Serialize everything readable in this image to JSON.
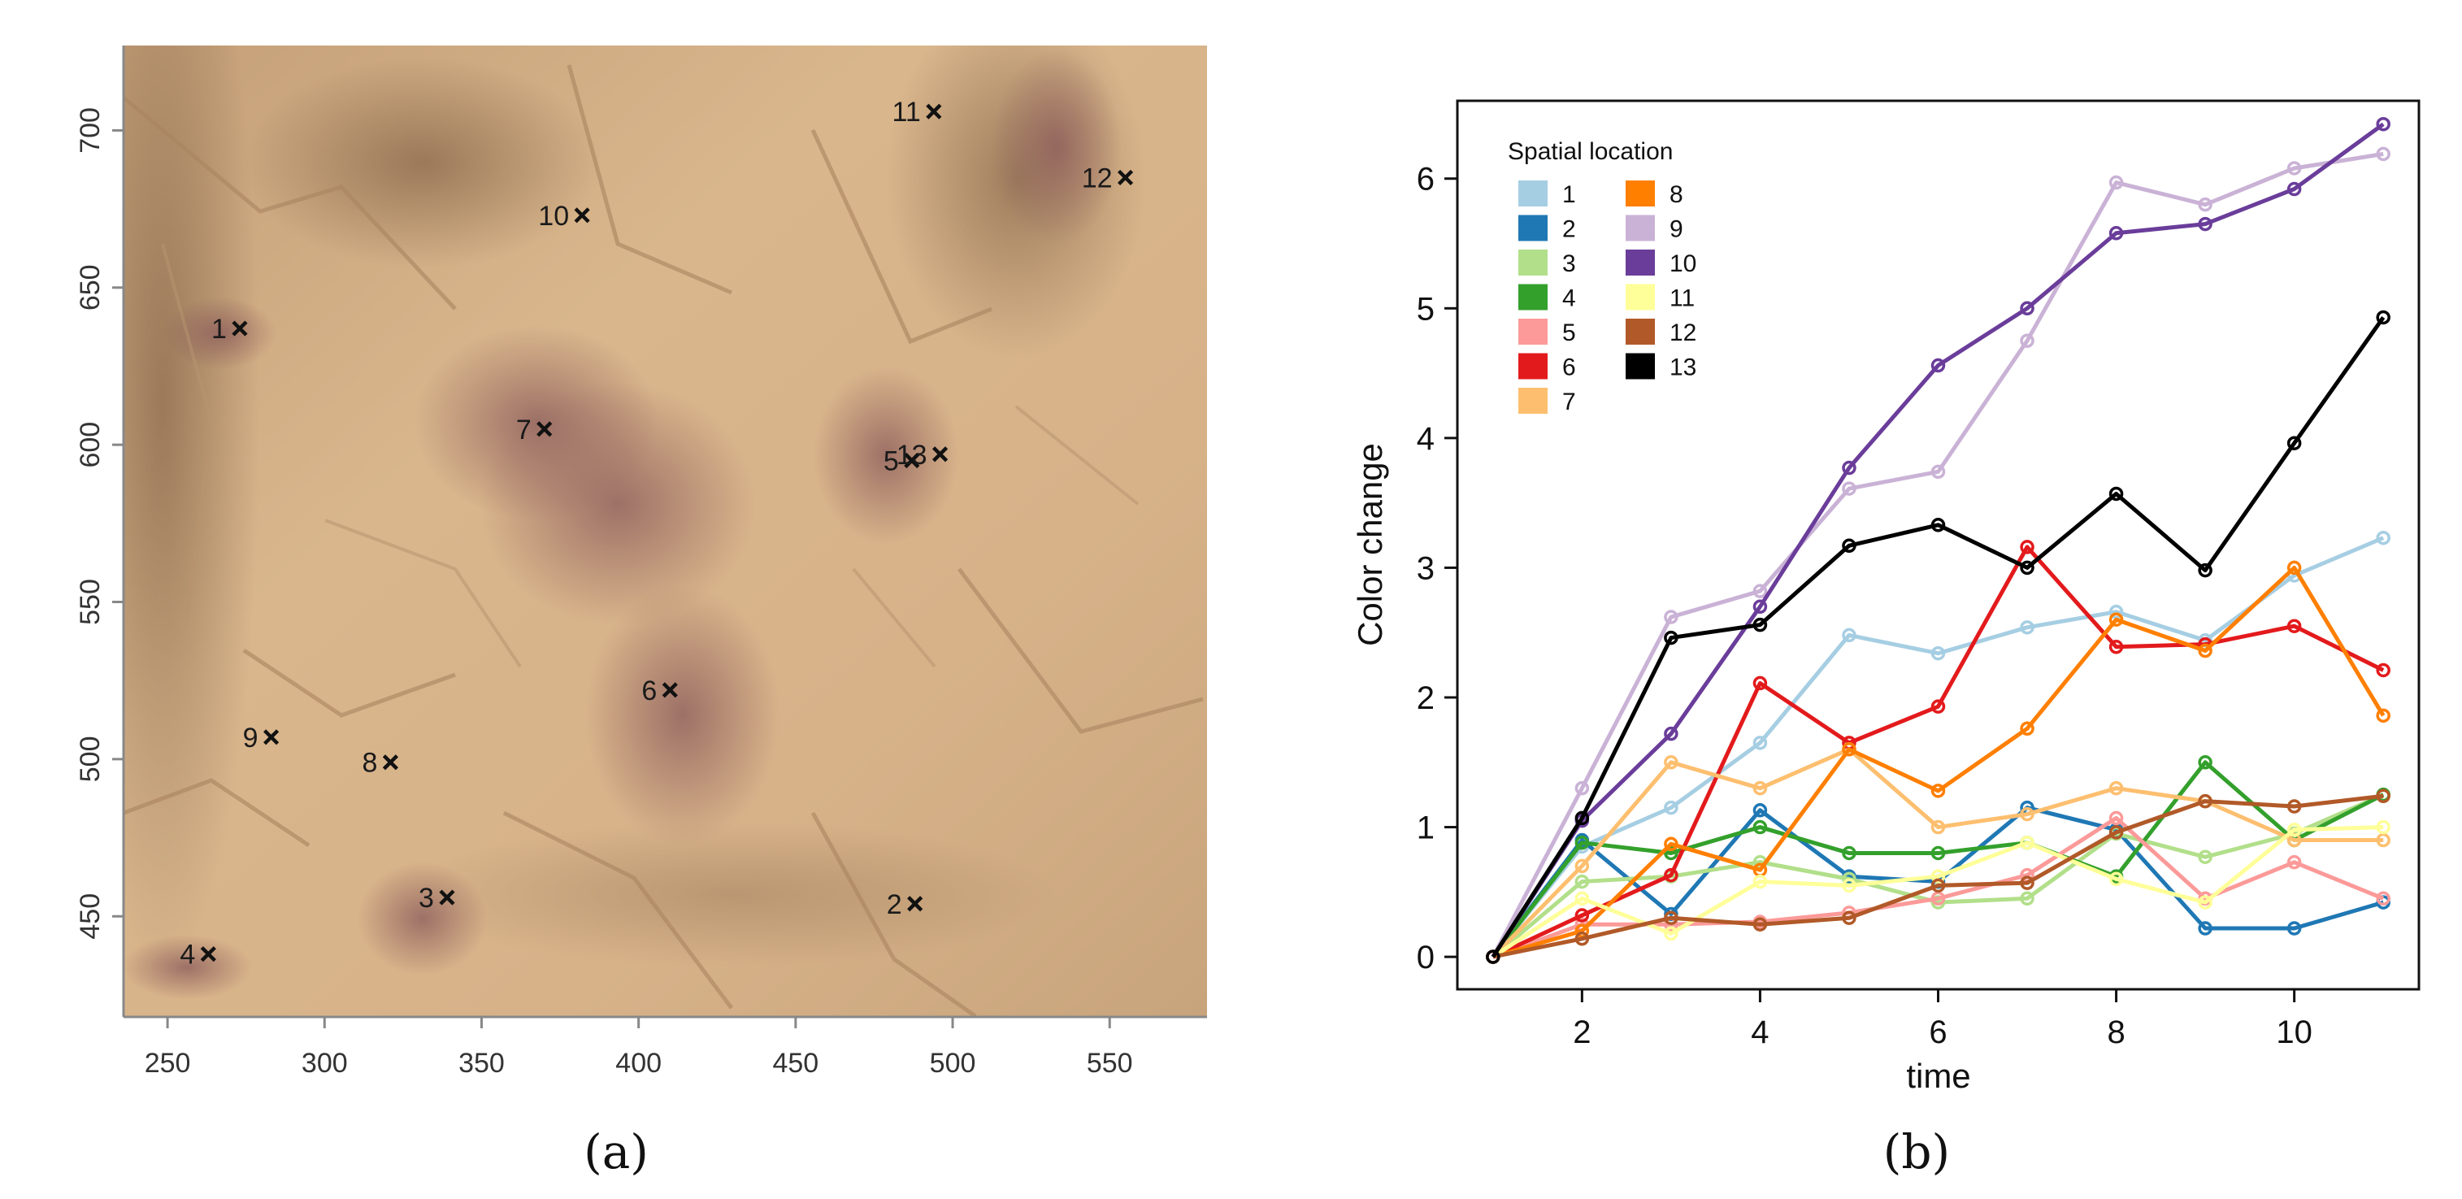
{
  "panel_a": {
    "label": "(a)",
    "chart_data": {
      "type": "scatter",
      "xlim": [
        236,
        581
      ],
      "ylim": [
        418,
        727
      ],
      "xticks": [
        250,
        300,
        350,
        400,
        450,
        500,
        550
      ],
      "yticks": [
        450,
        500,
        550,
        600,
        650,
        700
      ],
      "background": "photograph of rock wall with reddish pigment",
      "points": [
        {
          "label": "1",
          "x": 273,
          "y": 637
        },
        {
          "label": "2",
          "x": 488,
          "y": 454
        },
        {
          "label": "3",
          "x": 339,
          "y": 456
        },
        {
          "label": "4",
          "x": 263,
          "y": 438
        },
        {
          "label": "5",
          "x": 487,
          "y": 595
        },
        {
          "label": "6",
          "x": 410,
          "y": 522
        },
        {
          "label": "7",
          "x": 370,
          "y": 605
        },
        {
          "label": "8",
          "x": 321,
          "y": 499
        },
        {
          "label": "9",
          "x": 283,
          "y": 507
        },
        {
          "label": "10",
          "x": 382,
          "y": 673
        },
        {
          "label": "11",
          "x": 494,
          "y": 706
        },
        {
          "label": "12",
          "x": 555,
          "y": 685
        },
        {
          "label": "13",
          "x": 496,
          "y": 597
        }
      ]
    }
  },
  "panel_b": {
    "label": "(b)",
    "chart_data": {
      "type": "line",
      "xlabel": "time",
      "ylabel": "Color change",
      "xlim": [
        0.6,
        11.4
      ],
      "ylim": [
        -0.25,
        6.6
      ],
      "xticks": [
        2,
        4,
        6,
        8,
        10
      ],
      "yticks": [
        0,
        1,
        2,
        3,
        4,
        5,
        6
      ],
      "legend_title": "Spatial location",
      "legend_placement": "top-left",
      "x": [
        1,
        2,
        3,
        4,
        5,
        6,
        7,
        8,
        9,
        10,
        11
      ],
      "series": [
        {
          "name": "1",
          "color": "#a6cee3",
          "values": [
            0,
            0.85,
            1.15,
            1.65,
            2.48,
            2.34,
            2.54,
            2.66,
            2.44,
            2.94,
            3.23
          ]
        },
        {
          "name": "2",
          "color": "#1f78b4",
          "values": [
            0,
            0.9,
            0.33,
            1.13,
            0.62,
            0.58,
            1.15,
            0.98,
            0.22,
            0.22,
            0.42
          ]
        },
        {
          "name": "3",
          "color": "#b2df8a",
          "values": [
            0,
            0.58,
            0.62,
            0.73,
            0.6,
            0.42,
            0.45,
            0.95,
            0.77,
            0.95,
            1.25
          ]
        },
        {
          "name": "4",
          "color": "#33a02c",
          "values": [
            0,
            0.88,
            0.8,
            1.0,
            0.8,
            0.8,
            0.88,
            0.62,
            1.5,
            0.9,
            1.25
          ]
        },
        {
          "name": "5",
          "color": "#fb9a99",
          "values": [
            0,
            0.25,
            0.25,
            0.27,
            0.34,
            0.45,
            0.63,
            1.07,
            0.45,
            0.73,
            0.45
          ]
        },
        {
          "name": "6",
          "color": "#e31a1c",
          "values": [
            0,
            0.32,
            0.63,
            2.11,
            1.65,
            1.93,
            3.16,
            2.39,
            2.41,
            2.55,
            2.21
          ]
        },
        {
          "name": "7",
          "color": "#fdbf6f",
          "values": [
            0,
            0.7,
            1.5,
            1.3,
            1.6,
            1.0,
            1.1,
            1.3,
            1.2,
            0.9,
            0.9
          ]
        },
        {
          "name": "8",
          "color": "#ff7f00",
          "values": [
            0,
            0.2,
            0.87,
            0.67,
            1.6,
            1.28,
            1.76,
            2.6,
            2.36,
            3.0,
            1.86
          ]
        },
        {
          "name": "9",
          "color": "#cab2d6",
          "values": [
            0,
            1.3,
            2.62,
            2.82,
            3.61,
            3.74,
            4.75,
            5.97,
            5.8,
            6.08,
            6.19
          ]
        },
        {
          "name": "10",
          "color": "#6a3d9a",
          "values": [
            0,
            1.05,
            1.72,
            2.7,
            3.77,
            4.56,
            5.0,
            5.58,
            5.65,
            5.92,
            6.42
          ]
        },
        {
          "name": "11",
          "color": "#ffff99",
          "values": [
            0,
            0.45,
            0.18,
            0.58,
            0.55,
            0.62,
            0.88,
            0.6,
            0.42,
            0.98,
            1.0
          ]
        },
        {
          "name": "12",
          "color": "#b15928",
          "values": [
            0,
            0.14,
            0.3,
            0.25,
            0.3,
            0.55,
            0.57,
            0.96,
            1.2,
            1.16,
            1.24
          ]
        },
        {
          "name": "13",
          "color": "#000000",
          "values": [
            0,
            1.07,
            2.46,
            2.56,
            3.17,
            3.33,
            3.0,
            3.57,
            2.98,
            3.96,
            4.93
          ]
        }
      ]
    }
  }
}
